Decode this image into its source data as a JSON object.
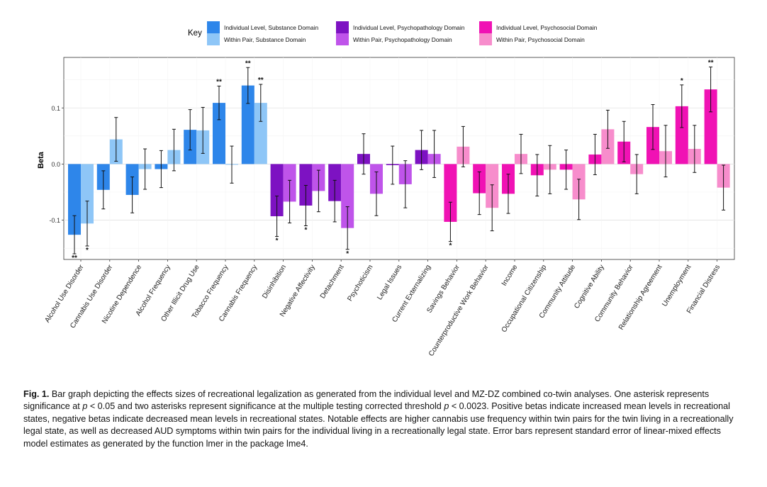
{
  "chart_data": {
    "type": "bar",
    "title": "",
    "xlabel": "",
    "ylabel": "Beta",
    "ylim": [
      -0.17,
      0.19
    ],
    "yticks": [
      0.1,
      0.0,
      -0.1
    ],
    "ytick_labels": [
      "0.1",
      "0.0",
      "-0.1"
    ],
    "grid": true,
    "legend": {
      "title": "Key",
      "placement": "top-center",
      "entries": [
        {
          "label": "Individual Level, Substance Domain",
          "color": "#2e86ea"
        },
        {
          "label": "Within Pair, Substance Domain",
          "color": "#8ec6f7"
        },
        {
          "label": "Individual Level, Psychopathology Domain",
          "color": "#7d12c2"
        },
        {
          "label": "Within Pair, Psychopathology Domain",
          "color": "#bf54ea"
        },
        {
          "label": "Individual Level, Psychosocial Domain",
          "color": "#f012b4"
        },
        {
          "label": "Within Pair, Psychosocial Domain",
          "color": "#f78dcc"
        }
      ]
    },
    "categories": [
      "Alcohol Use Disorder",
      "Cannabis Use Disorder",
      "Nicotine Dependence",
      "Alcohol Frequency",
      "Other Illicit Drug Use",
      "Tobacco Frequency",
      "Cannabis Frequency",
      "Disinhibition",
      "Negative Affectivity",
      "Detachment",
      "Psychoticism",
      "Legal Issues",
      "Current Externalizing",
      "Savings Behavior",
      "Counterproductive Work Behavior",
      "Income",
      "Occupational Citizenship",
      "Community Attitude",
      "Cognitive Ability",
      "Community Behavior",
      "Relationship Agreement",
      "Unemployment",
      "Financial Distress"
    ],
    "domains": [
      "substance",
      "substance",
      "substance",
      "substance",
      "substance",
      "substance",
      "substance",
      "psychopathology",
      "psychopathology",
      "psychopathology",
      "psychopathology",
      "psychopathology",
      "psychopathology",
      "psychosocial",
      "psychosocial",
      "psychosocial",
      "psychosocial",
      "psychosocial",
      "psychosocial",
      "psychosocial",
      "psychosocial",
      "psychosocial",
      "psychosocial"
    ],
    "series": [
      {
        "name": "Individual Level",
        "values": [
          -0.126,
          -0.046,
          -0.055,
          -0.009,
          0.061,
          0.109,
          0.14,
          -0.093,
          -0.074,
          -0.066,
          0.018,
          -0.002,
          0.025,
          -0.103,
          -0.052,
          -0.053,
          -0.02,
          -0.01,
          0.017,
          0.04,
          0.066,
          0.103,
          0.133
        ],
        "errors": [
          0.034,
          0.034,
          0.032,
          0.033,
          0.036,
          0.03,
          0.032,
          0.036,
          0.036,
          0.037,
          0.036,
          0.034,
          0.035,
          0.035,
          0.038,
          0.035,
          0.037,
          0.035,
          0.036,
          0.036,
          0.04,
          0.038,
          0.04
        ],
        "sig": [
          "**",
          "",
          "",
          "",
          "",
          "**",
          "**",
          "*",
          "*",
          "",
          "",
          "",
          "",
          "*",
          "",
          "",
          "",
          "",
          "",
          "",
          "",
          "*",
          "**"
        ]
      },
      {
        "name": "Within Pair",
        "values": [
          -0.106,
          0.044,
          -0.009,
          0.025,
          0.06,
          -0.001,
          0.109,
          -0.067,
          -0.048,
          -0.114,
          -0.053,
          -0.036,
          0.018,
          0.031,
          -0.078,
          0.018,
          -0.01,
          -0.063,
          0.062,
          -0.018,
          0.023,
          0.027,
          -0.042
        ],
        "errors": [
          0.04,
          0.039,
          0.036,
          0.037,
          0.041,
          0.033,
          0.033,
          0.038,
          0.037,
          0.038,
          0.039,
          0.042,
          0.042,
          0.036,
          0.041,
          0.035,
          0.043,
          0.036,
          0.034,
          0.035,
          0.046,
          0.042,
          0.04
        ],
        "sig": [
          "*",
          "",
          "",
          "",
          "",
          "",
          "**",
          "",
          "",
          "*",
          "",
          "",
          "",
          "",
          "",
          "",
          "",
          "",
          "",
          "",
          "",
          "",
          ""
        ]
      }
    ]
  },
  "caption": {
    "label": "Fig. 1.",
    "part1": " Bar graph depicting the effects sizes of recreational legalization as generated from the individual level and MZ-DZ combined co-twin analyses. One asterisk represents significance at ",
    "p1": "p",
    "part2": " < 0.05 and two asterisks represent significance at the multiple testing corrected threshold ",
    "p2": "p",
    "part3": " < 0.0023. Positive betas indicate increased mean levels in recreational states, negative betas indicate decreased mean levels in recreational states. Notable effects are higher cannabis use frequency within twin pairs for the twin living in a recreationally legal state, as well as decreased AUD symptoms within twin pairs for the individual living in a recreationally legal state. Error bars represent standard error of linear-mixed effects model estimates as generated by the function lmer in the package lme4."
  }
}
